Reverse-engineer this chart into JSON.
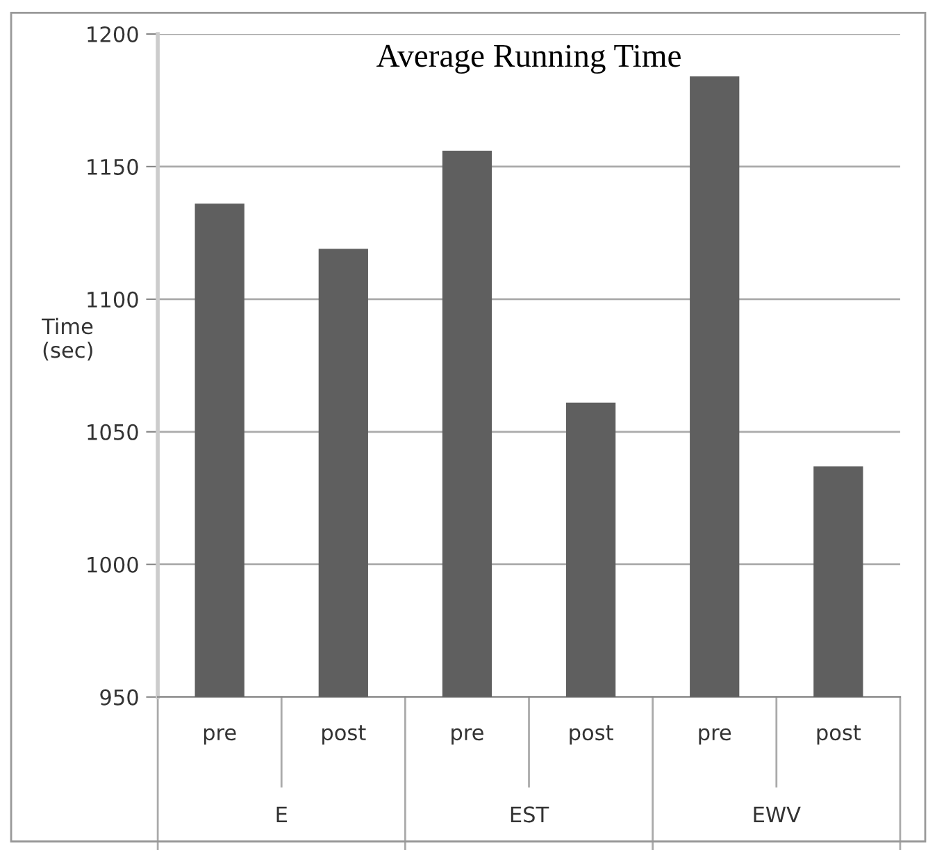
{
  "chart_data": {
    "type": "bar",
    "title": "Average Running Time",
    "ylabel": "Time\n(sec)",
    "categories": [
      "pre",
      "post",
      "pre",
      "post",
      "pre",
      "post"
    ],
    "values": [
      1136,
      1119,
      1156,
      1061,
      1184,
      1037
    ],
    "color": "#5f5f5f",
    "annotations": [
      "E",
      "EST",
      "EWV"
    ],
    "ylim": [
      950,
      1200
    ],
    "yticks": [
      950,
      1000,
      1050,
      1100,
      1150,
      1200
    ],
    "grid": "y",
    "legend": false
  }
}
